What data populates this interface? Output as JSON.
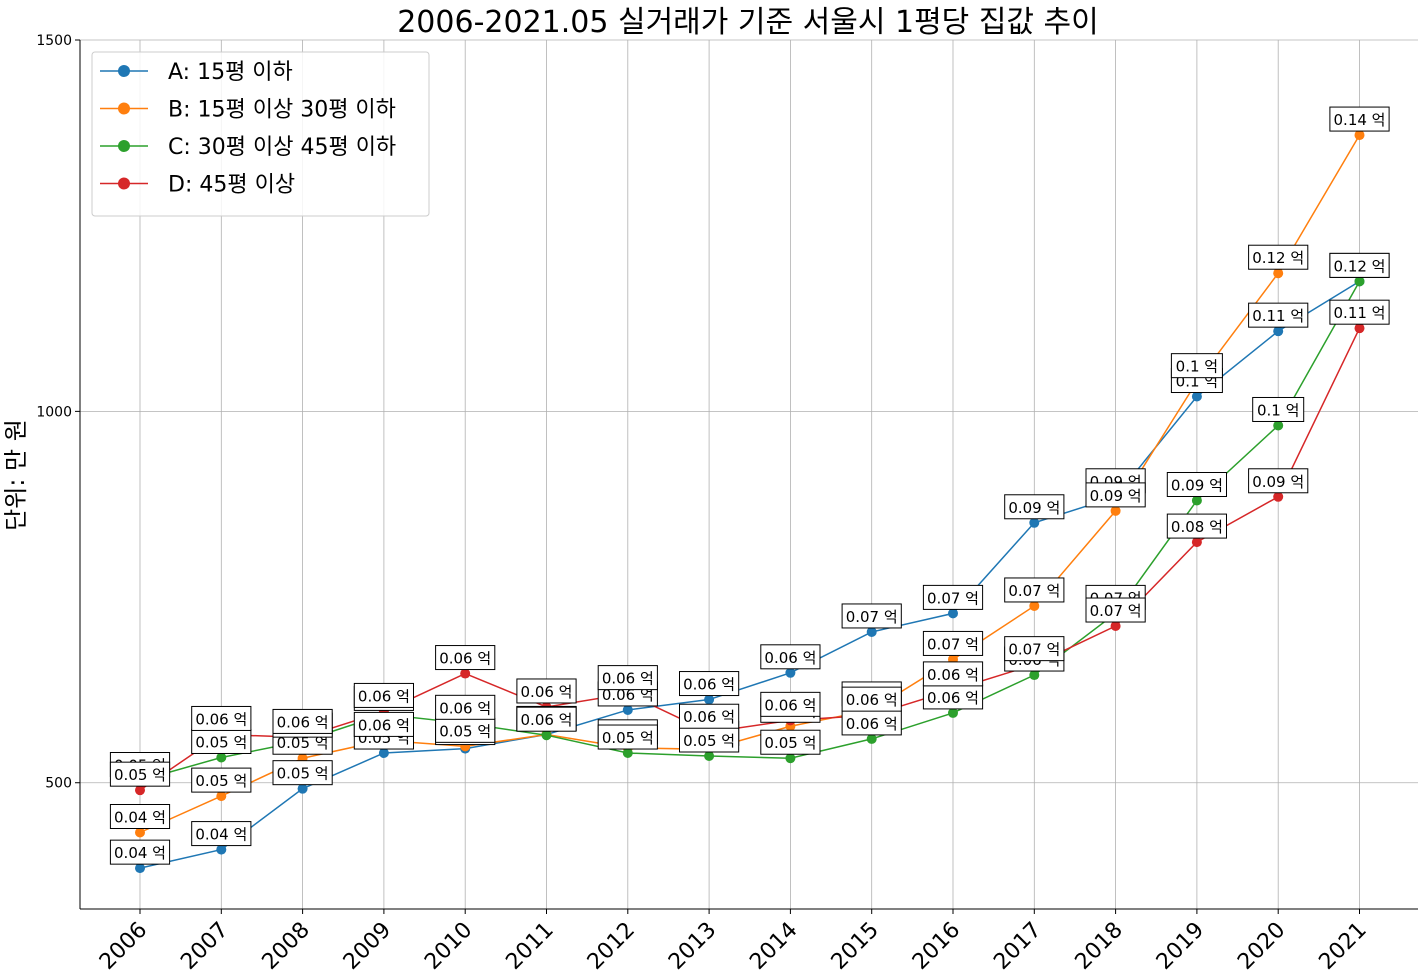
{
  "chart_data": {
    "type": "line",
    "title": "2006-2021.05 실거래가 기준 서울시 1평당 집값 추이",
    "xlabel": "",
    "ylabel": "단위: 만 원",
    "ylim": [
      330,
      1500
    ],
    "yticks": [
      500,
      1000,
      1500
    ],
    "grid": true,
    "legend_position": "top-left",
    "categories": [
      "2006",
      "2007",
      "2008",
      "2009",
      "2010",
      "2011",
      "2012",
      "2013",
      "2014",
      "2015",
      "2016",
      "2017",
      "2018",
      "2019",
      "2020",
      "2021"
    ],
    "data_label_unit": "억",
    "series": [
      {
        "name": "A: 15평 이하",
        "color": "#1f77b4",
        "values": [
          385,
          410,
          492,
          540,
          546,
          565,
          598,
          612,
          648,
          703,
          728,
          850,
          885,
          1020,
          1108,
          1175
        ]
      },
      {
        "name": "B: 15평 이상 30평 이하",
        "color": "#ff7f0e",
        "values": [
          433,
          482,
          533,
          557,
          549,
          565,
          547,
          545,
          576,
          598,
          666,
          738,
          866,
          1040,
          1186,
          1372
        ]
      },
      {
        "name": "C: 30평 이상 45평 이하",
        "color": "#2ca02c",
        "values": [
          503,
          534,
          556,
          592,
          580,
          564,
          540,
          536,
          533,
          559,
          594,
          645,
          728,
          880,
          981,
          1175
        ]
      },
      {
        "name": "D: 45평 이상",
        "color": "#d62728",
        "values": [
          490,
          565,
          561,
          596,
          647,
          602,
          620,
          568,
          584,
          591,
          625,
          659,
          711,
          824,
          885,
          1112
        ]
      }
    ]
  }
}
